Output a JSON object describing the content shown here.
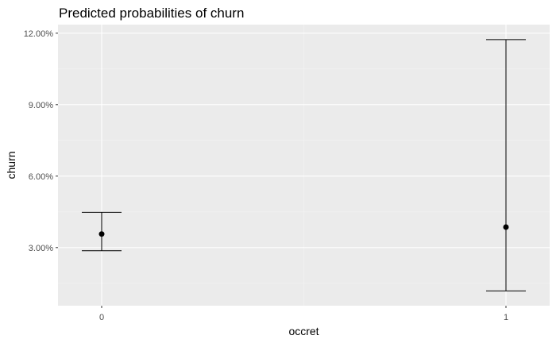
{
  "chart_data": {
    "type": "scatter",
    "title": "Predicted probabilities of churn",
    "xlabel": "occret",
    "ylabel": "churn",
    "categories": [
      "0",
      "1"
    ],
    "series": [
      {
        "points": [
          {
            "x": "0",
            "y": 0.0357,
            "ymin": 0.0287,
            "ymax": 0.0448
          },
          {
            "x": "1",
            "y": 0.0386,
            "ymin": 0.0118,
            "ymax": 0.1173
          }
        ]
      }
    ],
    "ylim": [
      0.0056,
      0.1236
    ],
    "yticks": [
      0.03,
      0.06,
      0.09,
      0.12
    ],
    "ytick_labels": [
      "3.00%",
      "6.00%",
      "9.00%",
      "12.00%"
    ],
    "grid": true,
    "colors": {
      "panel_background": "#ebebeb",
      "grid_major": "#ffffff",
      "grid_minor": "#f3f3f3",
      "marks": "#000000",
      "tick_text": "#4d4d4d"
    }
  }
}
